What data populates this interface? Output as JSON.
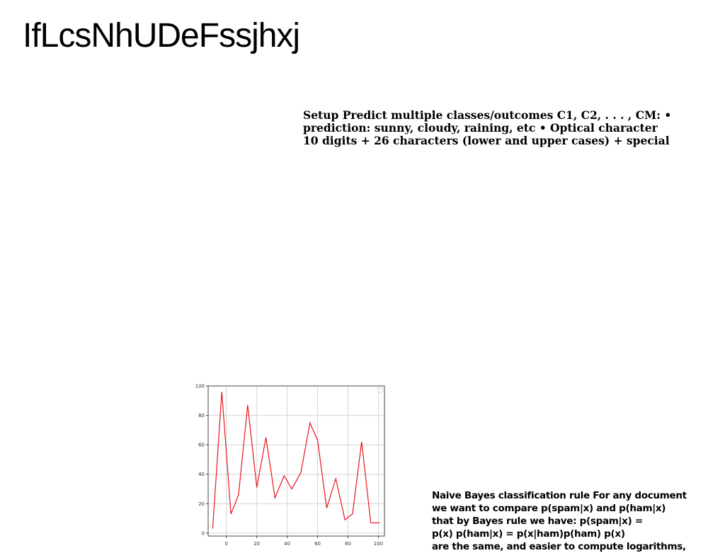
{
  "title": "IfLcsNhUDeFssjhxj",
  "setup_lines": [
    "Setup Predict multiple classes/outcomes C1, C2, . . . , CM: •",
    "prediction: sunny, cloudy, raining, etc • Optical character",
    "10 digits + 26 characters (lower and upper cases) + special"
  ],
  "bayes_lines": [
    "Naive Bayes classification rule For any document",
    "we want to compare p(spam|x) and p(ham|x)",
    "that by Bayes rule we have: p(spam|x) =",
    "p(x) p(ham|x) = p(x|ham)p(ham) p(x)",
    "are the same, and easier to compute logarithms,"
  ],
  "chart_data": {
    "type": "line",
    "xlim": [
      -12,
      104
    ],
    "ylim": [
      -2,
      100
    ],
    "xticks": [
      0,
      20,
      40,
      60,
      80,
      100
    ],
    "yticks": [
      0,
      20,
      40,
      60,
      80,
      100
    ],
    "grid": true,
    "legend": "top-right",
    "series": [
      {
        "color": "#e8141c",
        "x": [
          -9,
          -3,
          3,
          8,
          14,
          20,
          26,
          32,
          38,
          43,
          49,
          55,
          60,
          66,
          72,
          78,
          83,
          89,
          95,
          101
        ],
        "y": [
          3,
          96,
          13,
          26,
          87,
          31,
          65,
          24,
          39,
          30,
          41,
          75,
          63,
          17,
          37,
          9,
          13,
          62,
          7,
          7
        ]
      }
    ]
  }
}
